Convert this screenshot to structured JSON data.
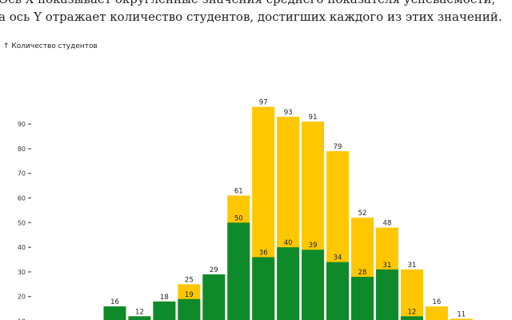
{
  "caption": {
    "line1": "Ось X показывает округленные значения среднего показателя успеваемости,",
    "line2": "а ось Y отражает количество студентов, достигших каждого из этих значений."
  },
  "colors": {
    "total": "#ffc700",
    "part": "#0e8a2a"
  },
  "chart_data": {
    "type": "bar",
    "ylabel": "↑ Количество студентов",
    "y_ticks": [
      10,
      20,
      30,
      40,
      50,
      60,
      70,
      80,
      90
    ],
    "ylim": [
      8,
      101
    ],
    "grid": false,
    "series": [
      {
        "values": [
          16,
          12,
          18,
          25,
          29,
          61,
          97,
          93,
          91,
          79,
          52,
          48,
          31,
          16,
          11
        ]
      },
      {
        "values": [
          16,
          12,
          18,
          19,
          29,
          50,
          36,
          40,
          39,
          34,
          28,
          31,
          12,
          8,
          6
        ]
      }
    ],
    "labels_total": [
      "",
      "",
      "",
      "25",
      "",
      "61",
      "97",
      "93",
      "91",
      "79",
      "52",
      "48",
      "31",
      "16",
      "11"
    ],
    "labels_part": [
      "16",
      "12",
      "18",
      "19",
      "29",
      "50",
      "36",
      "40",
      "39",
      "34",
      "28",
      "31",
      "12",
      "",
      ""
    ]
  }
}
